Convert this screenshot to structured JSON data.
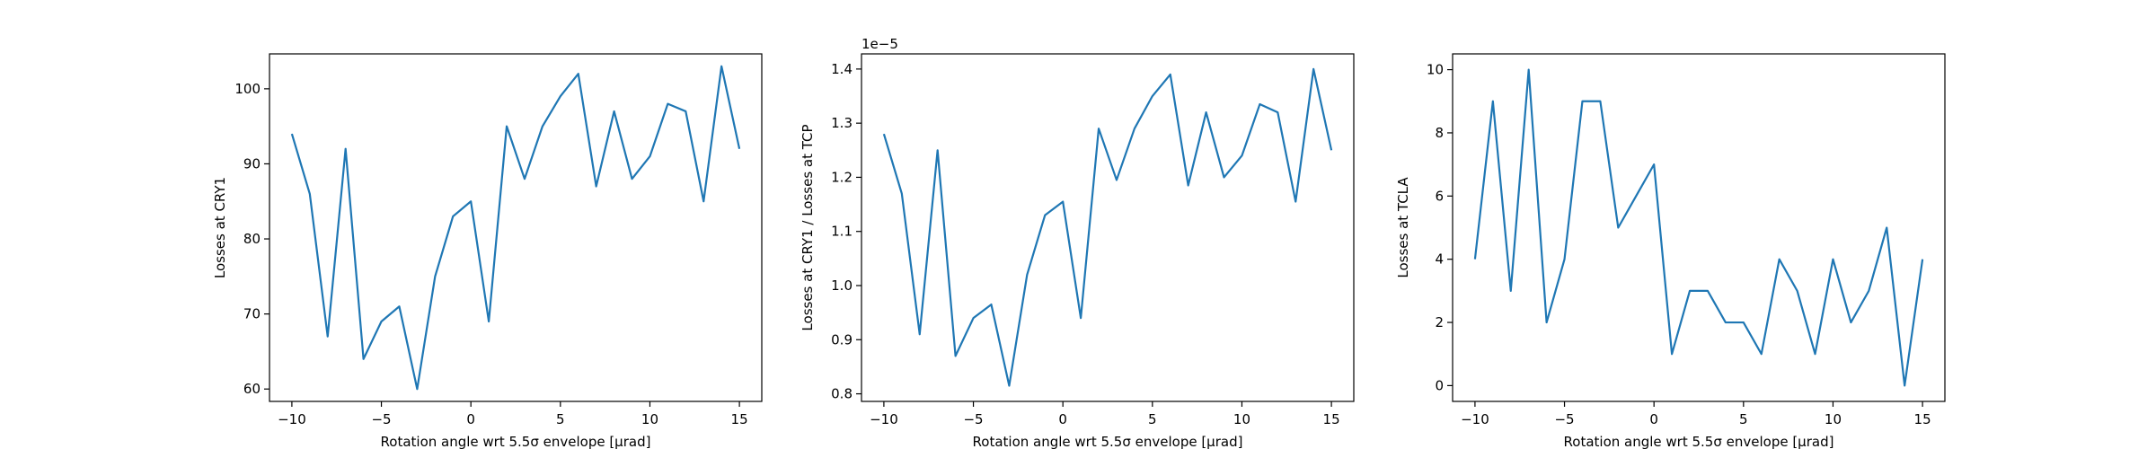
{
  "chart_data": [
    {
      "type": "line",
      "xlabel": "Rotation angle wrt 5.5σ envelope [μrad]",
      "ylabel": "Losses at CRY1",
      "xlim": [
        -11.25,
        16.25
      ],
      "ylim": [
        58.35,
        104.65
      ],
      "xticks": [
        -10,
        -5,
        0,
        5,
        10,
        15
      ],
      "yticks": [
        60,
        70,
        80,
        90,
        100
      ],
      "ytick_labels": [
        "60",
        "70",
        "80",
        "90",
        "100"
      ],
      "offset_text": "",
      "line_color": "#1f77b4",
      "series": [
        {
          "x": [
            -10,
            -9,
            -8,
            -7,
            -6,
            -5,
            -4,
            -3,
            -2,
            -1,
            0,
            1,
            2,
            3,
            4,
            5,
            6,
            7,
            8,
            9,
            10,
            11,
            12,
            13,
            14,
            15
          ],
          "values": [
            94,
            86,
            67,
            92,
            64,
            69,
            71,
            60,
            75,
            83,
            85,
            69,
            95,
            88,
            95,
            99,
            102,
            87,
            97,
            88,
            91,
            98,
            97,
            85,
            103,
            92
          ]
        }
      ]
    },
    {
      "type": "line",
      "xlabel": "Rotation angle wrt 5.5σ envelope [μrad]",
      "ylabel": "Losses at CRY1 / Losses at TCP",
      "xlim": [
        -11.25,
        16.25
      ],
      "ylim": [
        0.786,
        1.428
      ],
      "xticks": [
        -10,
        -5,
        0,
        5,
        10,
        15
      ],
      "yticks": [
        0.8,
        0.9,
        1.0,
        1.1,
        1.2,
        1.3,
        1.4
      ],
      "ytick_labels": [
        "0.8",
        "0.9",
        "1.0",
        "1.1",
        "1.2",
        "1.3",
        "1.4"
      ],
      "offset_text": "1e−5",
      "line_color": "#1f77b4",
      "series": [
        {
          "x": [
            -10,
            -9,
            -8,
            -7,
            -6,
            -5,
            -4,
            -3,
            -2,
            -1,
            0,
            1,
            2,
            3,
            4,
            5,
            6,
            7,
            8,
            9,
            10,
            11,
            12,
            13,
            14,
            15
          ],
          "values": [
            1.28,
            1.17,
            0.91,
            1.25,
            0.87,
            0.94,
            0.965,
            0.815,
            1.02,
            1.13,
            1.155,
            0.94,
            1.29,
            1.195,
            1.29,
            1.35,
            1.39,
            1.185,
            1.32,
            1.2,
            1.24,
            1.335,
            1.32,
            1.155,
            1.4,
            1.25
          ]
        }
      ]
    },
    {
      "type": "line",
      "xlabel": "Rotation angle wrt 5.5σ envelope [μrad]",
      "ylabel": "Losses at TCLA",
      "xlim": [
        -11.25,
        16.25
      ],
      "ylim": [
        -0.5,
        10.5
      ],
      "xticks": [
        -10,
        -5,
        0,
        5,
        10,
        15
      ],
      "yticks": [
        0,
        2,
        4,
        6,
        8,
        10
      ],
      "ytick_labels": [
        "0",
        "2",
        "4",
        "6",
        "8",
        "10"
      ],
      "offset_text": "",
      "line_color": "#1f77b4",
      "series": [
        {
          "x": [
            -10,
            -9,
            -8,
            -7,
            -6,
            -5,
            -4,
            -3,
            -2,
            -1,
            0,
            1,
            2,
            3,
            4,
            5,
            6,
            7,
            8,
            9,
            10,
            11,
            12,
            13,
            14,
            15
          ],
          "values": [
            4,
            9,
            3,
            10,
            2,
            4,
            9,
            9,
            5,
            6,
            7,
            1,
            3,
            3,
            2,
            2,
            1,
            4,
            3,
            1,
            4,
            2,
            3,
            5,
            0,
            4
          ]
        }
      ]
    }
  ]
}
